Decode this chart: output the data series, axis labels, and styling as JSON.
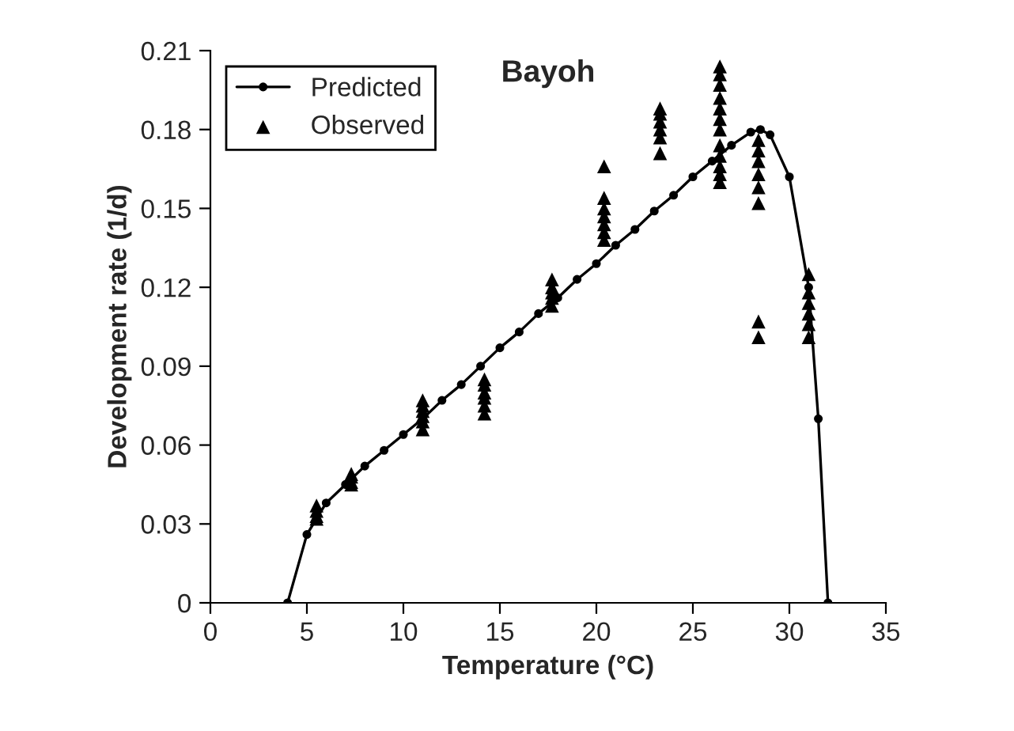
{
  "chart_data": {
    "type": "line",
    "title": "Bayoh",
    "xlabel": "Temperature (°C)",
    "ylabel": "Development rate (1/d)",
    "xlim": [
      0,
      35
    ],
    "xticks": [
      0,
      5,
      10,
      15,
      20,
      25,
      30,
      35
    ],
    "ylim": [
      0,
      0.21
    ],
    "yticks": [
      0,
      0.03,
      0.06,
      0.09,
      0.12,
      0.15,
      0.18,
      0.21
    ],
    "legend": "top left",
    "grid": false,
    "series": [
      {
        "name": "Predicted",
        "color": "#000000",
        "marker": "circle",
        "line_style": "solid",
        "x": [
          4,
          5,
          6,
          7,
          8,
          9,
          10,
          11,
          12,
          13,
          14,
          15,
          16,
          17,
          18,
          19,
          20,
          21,
          22,
          23,
          24,
          25,
          26,
          27,
          28,
          28.5,
          29,
          30,
          31,
          31.5,
          32
        ],
        "values": [
          0,
          0.026,
          0.038,
          0.045,
          0.052,
          0.058,
          0.064,
          0.07,
          0.077,
          0.083,
          0.09,
          0.097,
          0.103,
          0.11,
          0.116,
          0.123,
          0.129,
          0.136,
          0.142,
          0.149,
          0.155,
          0.162,
          0.168,
          0.174,
          0.179,
          0.18,
          0.178,
          0.162,
          0.12,
          0.07,
          0
        ]
      },
      {
        "name": "Observed",
        "type": "scatter",
        "color": "#000000",
        "marker": "triangle",
        "x": [
          5.5,
          5.5,
          5.5,
          5.5,
          7.3,
          7.3,
          7.3,
          7.3,
          11,
          11,
          11,
          11,
          11,
          11,
          14.2,
          14.2,
          14.2,
          14.2,
          14.2,
          14.2,
          17.7,
          17.7,
          17.7,
          17.7,
          17.7,
          20.4,
          20.4,
          20.4,
          20.4,
          20.4,
          20.4,
          20.4,
          23.3,
          23.3,
          23.3,
          23.3,
          23.3,
          23.3,
          26.4,
          26.4,
          26.4,
          26.4,
          26.4,
          26.4,
          26.4,
          26.4,
          26.4,
          26.4,
          26.4,
          26.4,
          28.4,
          28.4,
          28.4,
          28.4,
          28.4,
          28.4,
          28.4,
          28.4,
          31,
          31,
          31,
          31,
          31,
          31
        ],
        "values": [
          0.032,
          0.033,
          0.035,
          0.037,
          0.045,
          0.046,
          0.048,
          0.049,
          0.066,
          0.069,
          0.071,
          0.073,
          0.075,
          0.077,
          0.072,
          0.075,
          0.078,
          0.08,
          0.083,
          0.085,
          0.113,
          0.116,
          0.118,
          0.12,
          0.123,
          0.138,
          0.141,
          0.144,
          0.147,
          0.15,
          0.154,
          0.166,
          0.171,
          0.177,
          0.18,
          0.183,
          0.186,
          0.188,
          0.16,
          0.163,
          0.166,
          0.17,
          0.174,
          0.18,
          0.184,
          0.188,
          0.192,
          0.197,
          0.201,
          0.204,
          0.152,
          0.158,
          0.163,
          0.168,
          0.172,
          0.176,
          0.101,
          0.107,
          0.101,
          0.106,
          0.11,
          0.114,
          0.118,
          0.125
        ]
      }
    ]
  }
}
